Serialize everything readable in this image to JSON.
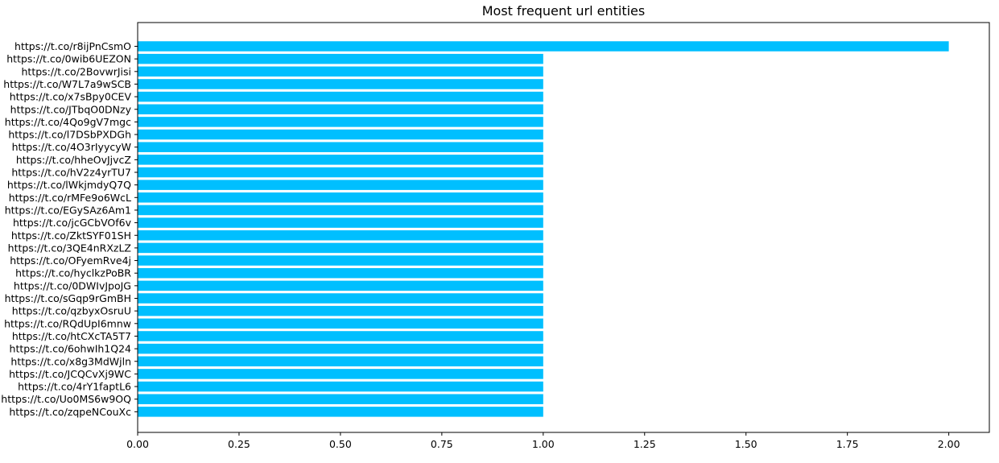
{
  "chart_data": {
    "type": "bar",
    "orientation": "horizontal",
    "title": "Most frequent url entities",
    "xlabel": "",
    "ylabel": "",
    "xlim": [
      0,
      2.1
    ],
    "grid": false,
    "bar_color": "#00bfff",
    "x_ticks": [
      "0.00",
      "0.25",
      "0.50",
      "0.75",
      "1.00",
      "1.25",
      "1.50",
      "1.75",
      "2.00"
    ],
    "categories": [
      "https://t.co/r8ijPnCsmO",
      "https://t.co/0wib6UEZON",
      "https://t.co/2BovwrJisi",
      "https://t.co/W7L7a9wSCB",
      "https://t.co/x7sBpy0CEV",
      "https://t.co/JTbqO0DNzy",
      "https://t.co/4Qo9gV7mgc",
      "https://t.co/l7DSbPXDGh",
      "https://t.co/4O3rIyycyW",
      "https://t.co/hheOvJjvcZ",
      "https://t.co/hV2z4yrTU7",
      "https://t.co/lWkjmdyQ7Q",
      "https://t.co/rMFe9o6WcL",
      "https://t.co/EGySAz6Am1",
      "https://t.co/jcGCbVOf6v",
      "https://t.co/ZktSYF01SH",
      "https://t.co/3QE4nRXzLZ",
      "https://t.co/OFyemRve4j",
      "https://t.co/hyclkzPoBR",
      "https://t.co/0DWIvJpoJG",
      "https://t.co/sGqp9rGmBH",
      "https://t.co/qzbyxOsruU",
      "https://t.co/RQdUpI6mnw",
      "https://t.co/htCXcTA5T7",
      "https://t.co/6ohwIh1Q24",
      "https://t.co/x8g3MdWjln",
      "https://t.co/JCQCvXj9WC",
      "https://t.co/4rY1faptL6",
      "https://t.co/Uo0MS6w9OQ",
      "https://t.co/zqpeNCouXc"
    ],
    "values": [
      2,
      1,
      1,
      1,
      1,
      1,
      1,
      1,
      1,
      1,
      1,
      1,
      1,
      1,
      1,
      1,
      1,
      1,
      1,
      1,
      1,
      1,
      1,
      1,
      1,
      1,
      1,
      1,
      1,
      1
    ]
  }
}
